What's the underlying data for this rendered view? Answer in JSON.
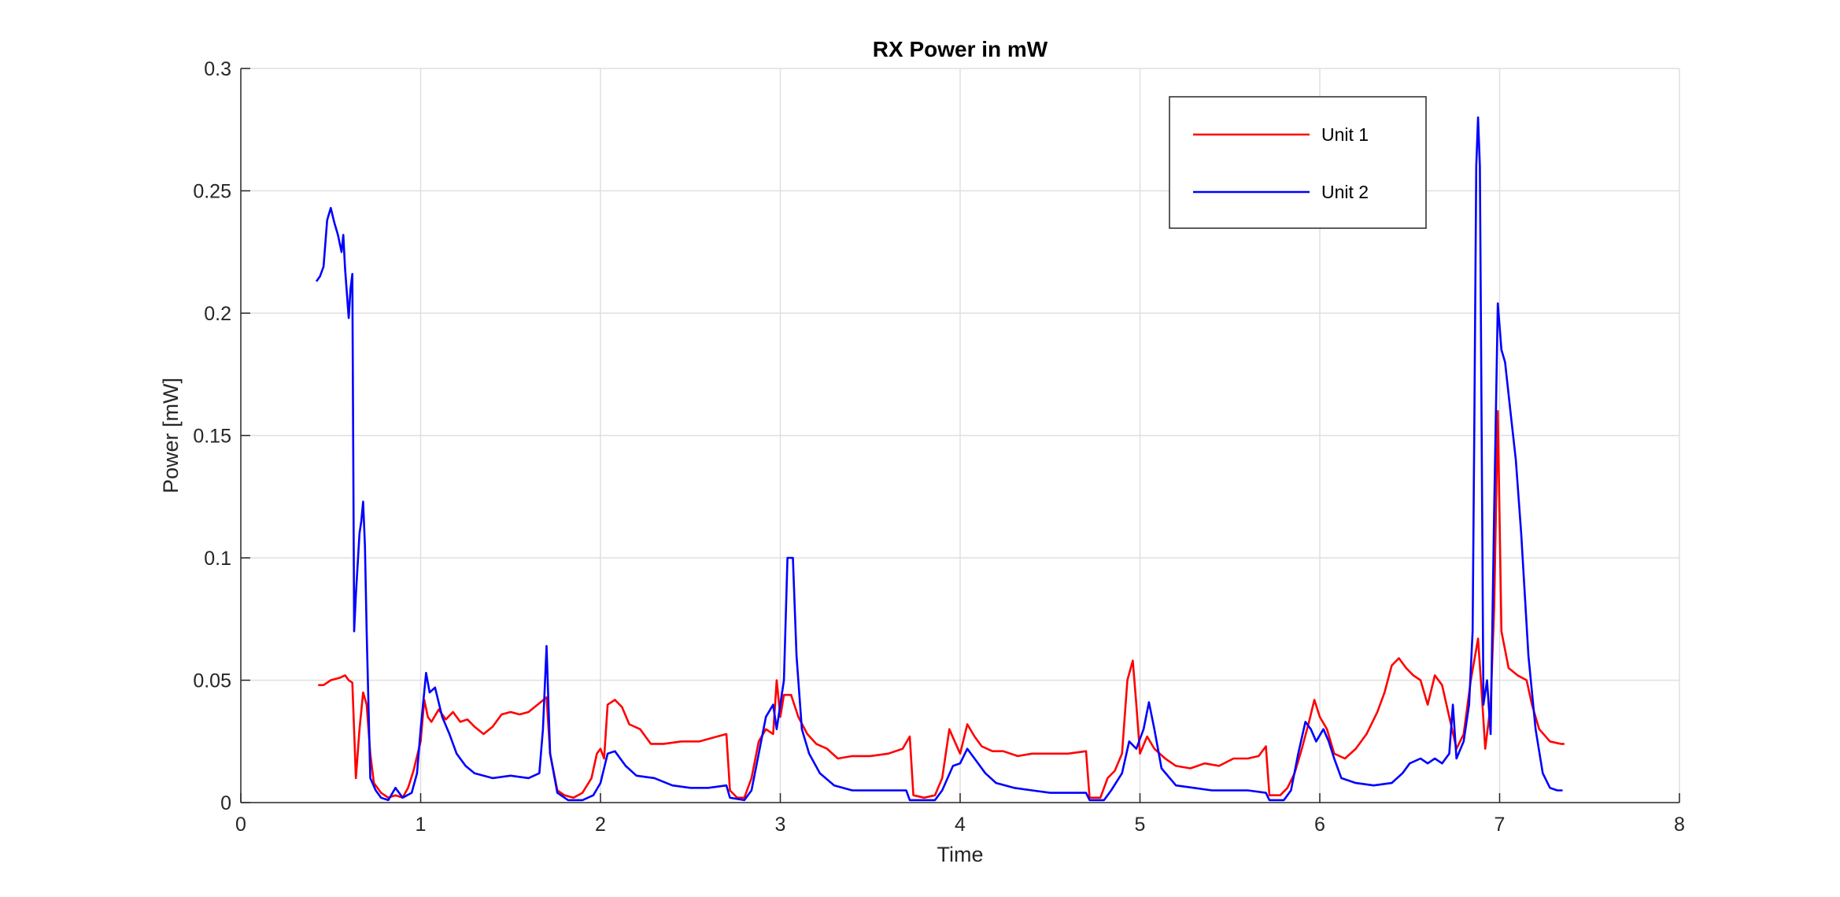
{
  "chart_data": {
    "type": "line",
    "title": "RX Power in mW",
    "xlabel": "Time",
    "ylabel": "Power [mW]",
    "xlim": [
      0,
      8
    ],
    "ylim": [
      0,
      0.3
    ],
    "xticks": [
      0,
      1,
      2,
      3,
      4,
      5,
      6,
      7,
      8
    ],
    "xtick_labels": [
      "0",
      "1",
      "2",
      "3",
      "4",
      "5",
      "6",
      "7",
      "8"
    ],
    "yticks": [
      0,
      0.05,
      0.1,
      0.15,
      0.2,
      0.25,
      0.3
    ],
    "ytick_labels": [
      "0",
      "0.05",
      "0.1",
      "0.15",
      "0.2",
      "0.25",
      "0.3"
    ],
    "grid": true,
    "legend_position": "top-right",
    "series": [
      {
        "name": "Unit 1",
        "color": "#ff0000",
        "points": [
          [
            0.43,
            0.048
          ],
          [
            0.46,
            0.048
          ],
          [
            0.5,
            0.05
          ],
          [
            0.55,
            0.051
          ],
          [
            0.58,
            0.052
          ],
          [
            0.6,
            0.05
          ],
          [
            0.62,
            0.049
          ],
          [
            0.64,
            0.01
          ],
          [
            0.66,
            0.03
          ],
          [
            0.68,
            0.045
          ],
          [
            0.7,
            0.04
          ],
          [
            0.72,
            0.02
          ],
          [
            0.74,
            0.008
          ],
          [
            0.78,
            0.004
          ],
          [
            0.82,
            0.002
          ],
          [
            0.86,
            0.003
          ],
          [
            0.9,
            0.002
          ],
          [
            0.93,
            0.006
          ],
          [
            0.96,
            0.013
          ],
          [
            1.0,
            0.025
          ],
          [
            1.02,
            0.042
          ],
          [
            1.04,
            0.035
          ],
          [
            1.06,
            0.033
          ],
          [
            1.1,
            0.038
          ],
          [
            1.14,
            0.034
          ],
          [
            1.18,
            0.037
          ],
          [
            1.22,
            0.033
          ],
          [
            1.26,
            0.034
          ],
          [
            1.3,
            0.031
          ],
          [
            1.35,
            0.028
          ],
          [
            1.4,
            0.031
          ],
          [
            1.45,
            0.036
          ],
          [
            1.5,
            0.037
          ],
          [
            1.55,
            0.036
          ],
          [
            1.6,
            0.037
          ],
          [
            1.65,
            0.04
          ],
          [
            1.7,
            0.043
          ],
          [
            1.72,
            0.02
          ],
          [
            1.76,
            0.005
          ],
          [
            1.8,
            0.003
          ],
          [
            1.85,
            0.002
          ],
          [
            1.9,
            0.004
          ],
          [
            1.95,
            0.01
          ],
          [
            1.98,
            0.02
          ],
          [
            2.0,
            0.022
          ],
          [
            2.02,
            0.018
          ],
          [
            2.04,
            0.04
          ],
          [
            2.08,
            0.042
          ],
          [
            2.12,
            0.039
          ],
          [
            2.16,
            0.032
          ],
          [
            2.22,
            0.03
          ],
          [
            2.28,
            0.024
          ],
          [
            2.35,
            0.024
          ],
          [
            2.45,
            0.025
          ],
          [
            2.55,
            0.025
          ],
          [
            2.65,
            0.027
          ],
          [
            2.7,
            0.028
          ],
          [
            2.72,
            0.005
          ],
          [
            2.76,
            0.002
          ],
          [
            2.8,
            0.002
          ],
          [
            2.84,
            0.01
          ],
          [
            2.88,
            0.025
          ],
          [
            2.92,
            0.03
          ],
          [
            2.96,
            0.028
          ],
          [
            2.98,
            0.05
          ],
          [
            3.0,
            0.035
          ],
          [
            3.02,
            0.044
          ],
          [
            3.06,
            0.044
          ],
          [
            3.1,
            0.035
          ],
          [
            3.15,
            0.028
          ],
          [
            3.2,
            0.024
          ],
          [
            3.26,
            0.022
          ],
          [
            3.32,
            0.018
          ],
          [
            3.4,
            0.019
          ],
          [
            3.5,
            0.019
          ],
          [
            3.6,
            0.02
          ],
          [
            3.68,
            0.022
          ],
          [
            3.72,
            0.027
          ],
          [
            3.74,
            0.003
          ],
          [
            3.8,
            0.002
          ],
          [
            3.86,
            0.003
          ],
          [
            3.9,
            0.01
          ],
          [
            3.94,
            0.03
          ],
          [
            3.97,
            0.025
          ],
          [
            4.0,
            0.02
          ],
          [
            4.04,
            0.032
          ],
          [
            4.08,
            0.027
          ],
          [
            4.12,
            0.023
          ],
          [
            4.18,
            0.021
          ],
          [
            4.24,
            0.021
          ],
          [
            4.32,
            0.019
          ],
          [
            4.4,
            0.02
          ],
          [
            4.5,
            0.02
          ],
          [
            4.6,
            0.02
          ],
          [
            4.7,
            0.021
          ],
          [
            4.72,
            0.002
          ],
          [
            4.78,
            0.002
          ],
          [
            4.82,
            0.01
          ],
          [
            4.86,
            0.013
          ],
          [
            4.9,
            0.02
          ],
          [
            4.93,
            0.05
          ],
          [
            4.96,
            0.058
          ],
          [
            4.98,
            0.04
          ],
          [
            5.0,
            0.02
          ],
          [
            5.04,
            0.027
          ],
          [
            5.08,
            0.022
          ],
          [
            5.14,
            0.018
          ],
          [
            5.2,
            0.015
          ],
          [
            5.28,
            0.014
          ],
          [
            5.36,
            0.016
          ],
          [
            5.44,
            0.015
          ],
          [
            5.52,
            0.018
          ],
          [
            5.6,
            0.018
          ],
          [
            5.66,
            0.019
          ],
          [
            5.7,
            0.023
          ],
          [
            5.72,
            0.003
          ],
          [
            5.78,
            0.003
          ],
          [
            5.82,
            0.006
          ],
          [
            5.86,
            0.012
          ],
          [
            5.9,
            0.022
          ],
          [
            5.94,
            0.033
          ],
          [
            5.97,
            0.042
          ],
          [
            6.0,
            0.035
          ],
          [
            6.04,
            0.03
          ],
          [
            6.08,
            0.02
          ],
          [
            6.14,
            0.018
          ],
          [
            6.2,
            0.022
          ],
          [
            6.26,
            0.028
          ],
          [
            6.32,
            0.037
          ],
          [
            6.36,
            0.045
          ],
          [
            6.4,
            0.056
          ],
          [
            6.44,
            0.059
          ],
          [
            6.48,
            0.055
          ],
          [
            6.52,
            0.052
          ],
          [
            6.56,
            0.05
          ],
          [
            6.6,
            0.04
          ],
          [
            6.64,
            0.052
          ],
          [
            6.68,
            0.048
          ],
          [
            6.72,
            0.035
          ],
          [
            6.76,
            0.022
          ],
          [
            6.8,
            0.028
          ],
          [
            6.84,
            0.05
          ],
          [
            6.88,
            0.067
          ],
          [
            6.9,
            0.045
          ],
          [
            6.92,
            0.022
          ],
          [
            6.95,
            0.04
          ],
          [
            6.97,
            0.08
          ],
          [
            6.99,
            0.16
          ],
          [
            7.01,
            0.07
          ],
          [
            7.05,
            0.055
          ],
          [
            7.1,
            0.052
          ],
          [
            7.15,
            0.05
          ],
          [
            7.18,
            0.04
          ],
          [
            7.22,
            0.03
          ],
          [
            7.28,
            0.025
          ],
          [
            7.34,
            0.024
          ],
          [
            7.36,
            0.024
          ]
        ]
      },
      {
        "name": "Unit 2",
        "color": "#0000ff",
        "points": [
          [
            0.42,
            0.213
          ],
          [
            0.44,
            0.215
          ],
          [
            0.46,
            0.219
          ],
          [
            0.48,
            0.238
          ],
          [
            0.5,
            0.243
          ],
          [
            0.52,
            0.237
          ],
          [
            0.54,
            0.232
          ],
          [
            0.56,
            0.225
          ],
          [
            0.57,
            0.232
          ],
          [
            0.58,
            0.218
          ],
          [
            0.6,
            0.198
          ],
          [
            0.61,
            0.21
          ],
          [
            0.62,
            0.216
          ],
          [
            0.63,
            0.07
          ],
          [
            0.64,
            0.085
          ],
          [
            0.66,
            0.11
          ],
          [
            0.67,
            0.115
          ],
          [
            0.68,
            0.123
          ],
          [
            0.69,
            0.105
          ],
          [
            0.7,
            0.07
          ],
          [
            0.72,
            0.01
          ],
          [
            0.75,
            0.005
          ],
          [
            0.78,
            0.002
          ],
          [
            0.82,
            0.001
          ],
          [
            0.86,
            0.006
          ],
          [
            0.9,
            0.002
          ],
          [
            0.95,
            0.004
          ],
          [
            0.98,
            0.012
          ],
          [
            1.0,
            0.03
          ],
          [
            1.03,
            0.053
          ],
          [
            1.05,
            0.045
          ],
          [
            1.08,
            0.047
          ],
          [
            1.12,
            0.035
          ],
          [
            1.16,
            0.028
          ],
          [
            1.2,
            0.02
          ],
          [
            1.25,
            0.015
          ],
          [
            1.3,
            0.012
          ],
          [
            1.4,
            0.01
          ],
          [
            1.5,
            0.011
          ],
          [
            1.6,
            0.01
          ],
          [
            1.66,
            0.012
          ],
          [
            1.68,
            0.03
          ],
          [
            1.7,
            0.064
          ],
          [
            1.72,
            0.02
          ],
          [
            1.76,
            0.004
          ],
          [
            1.82,
            0.001
          ],
          [
            1.9,
            0.001
          ],
          [
            1.96,
            0.003
          ],
          [
            2.0,
            0.008
          ],
          [
            2.04,
            0.02
          ],
          [
            2.08,
            0.021
          ],
          [
            2.14,
            0.015
          ],
          [
            2.2,
            0.011
          ],
          [
            2.3,
            0.01
          ],
          [
            2.4,
            0.007
          ],
          [
            2.5,
            0.006
          ],
          [
            2.6,
            0.006
          ],
          [
            2.7,
            0.007
          ],
          [
            2.72,
            0.002
          ],
          [
            2.8,
            0.001
          ],
          [
            2.84,
            0.005
          ],
          [
            2.88,
            0.02
          ],
          [
            2.92,
            0.035
          ],
          [
            2.96,
            0.04
          ],
          [
            2.98,
            0.03
          ],
          [
            3.0,
            0.04
          ],
          [
            3.02,
            0.05
          ],
          [
            3.04,
            0.1
          ],
          [
            3.07,
            0.1
          ],
          [
            3.09,
            0.06
          ],
          [
            3.12,
            0.03
          ],
          [
            3.16,
            0.02
          ],
          [
            3.22,
            0.012
          ],
          [
            3.3,
            0.007
          ],
          [
            3.4,
            0.005
          ],
          [
            3.5,
            0.005
          ],
          [
            3.6,
            0.005
          ],
          [
            3.7,
            0.005
          ],
          [
            3.72,
            0.001
          ],
          [
            3.8,
            0.001
          ],
          [
            3.86,
            0.001
          ],
          [
            3.9,
            0.005
          ],
          [
            3.96,
            0.015
          ],
          [
            4.0,
            0.016
          ],
          [
            4.04,
            0.022
          ],
          [
            4.08,
            0.018
          ],
          [
            4.14,
            0.012
          ],
          [
            4.2,
            0.008
          ],
          [
            4.3,
            0.006
          ],
          [
            4.4,
            0.005
          ],
          [
            4.5,
            0.004
          ],
          [
            4.6,
            0.004
          ],
          [
            4.7,
            0.004
          ],
          [
            4.72,
            0.001
          ],
          [
            4.8,
            0.001
          ],
          [
            4.84,
            0.005
          ],
          [
            4.9,
            0.012
          ],
          [
            4.94,
            0.025
          ],
          [
            4.98,
            0.022
          ],
          [
            5.02,
            0.03
          ],
          [
            5.05,
            0.041
          ],
          [
            5.08,
            0.03
          ],
          [
            5.12,
            0.014
          ],
          [
            5.2,
            0.007
          ],
          [
            5.3,
            0.006
          ],
          [
            5.4,
            0.005
          ],
          [
            5.5,
            0.005
          ],
          [
            5.6,
            0.005
          ],
          [
            5.7,
            0.004
          ],
          [
            5.72,
            0.001
          ],
          [
            5.8,
            0.001
          ],
          [
            5.84,
            0.005
          ],
          [
            5.88,
            0.02
          ],
          [
            5.92,
            0.033
          ],
          [
            5.95,
            0.03
          ],
          [
            5.98,
            0.025
          ],
          [
            6.02,
            0.03
          ],
          [
            6.05,
            0.025
          ],
          [
            6.08,
            0.018
          ],
          [
            6.12,
            0.01
          ],
          [
            6.2,
            0.008
          ],
          [
            6.3,
            0.007
          ],
          [
            6.4,
            0.008
          ],
          [
            6.46,
            0.012
          ],
          [
            6.5,
            0.016
          ],
          [
            6.56,
            0.018
          ],
          [
            6.6,
            0.016
          ],
          [
            6.64,
            0.018
          ],
          [
            6.68,
            0.016
          ],
          [
            6.72,
            0.02
          ],
          [
            6.74,
            0.04
          ],
          [
            6.76,
            0.018
          ],
          [
            6.8,
            0.025
          ],
          [
            6.83,
            0.04
          ],
          [
            6.85,
            0.07
          ],
          [
            6.86,
            0.16
          ],
          [
            6.87,
            0.26
          ],
          [
            6.88,
            0.28
          ],
          [
            6.89,
            0.26
          ],
          [
            6.9,
            0.15
          ],
          [
            6.91,
            0.04
          ],
          [
            6.93,
            0.05
          ],
          [
            6.95,
            0.028
          ],
          [
            6.97,
            0.12
          ],
          [
            6.99,
            0.204
          ],
          [
            7.01,
            0.185
          ],
          [
            7.03,
            0.18
          ],
          [
            7.06,
            0.16
          ],
          [
            7.09,
            0.14
          ],
          [
            7.12,
            0.11
          ],
          [
            7.16,
            0.06
          ],
          [
            7.2,
            0.03
          ],
          [
            7.24,
            0.012
          ],
          [
            7.28,
            0.006
          ],
          [
            7.32,
            0.005
          ],
          [
            7.35,
            0.005
          ]
        ]
      }
    ]
  }
}
